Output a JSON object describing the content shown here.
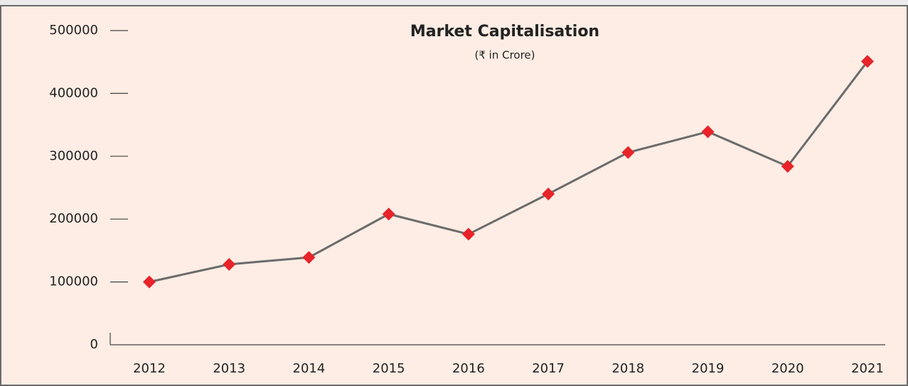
{
  "chart_data": {
    "type": "line",
    "title": "Market Capitalisation",
    "subtitle": "(₹ in Crore)",
    "categories": [
      "2012",
      "2013",
      "2014",
      "2015",
      "2016",
      "2017",
      "2018",
      "2019",
      "2020",
      "2021"
    ],
    "series": [
      {
        "name": "Market Capitalisation",
        "color": "#6b6b6b",
        "marker_color": "#e8232a",
        "values": [
          100000,
          128000,
          139000,
          208000,
          176000,
          240000,
          306000,
          339000,
          284000,
          451000
        ]
      }
    ],
    "ylim": [
      0,
      500000
    ],
    "yticks": [
      0,
      100000,
      200000,
      300000,
      400000,
      500000
    ],
    "grid": false
  }
}
